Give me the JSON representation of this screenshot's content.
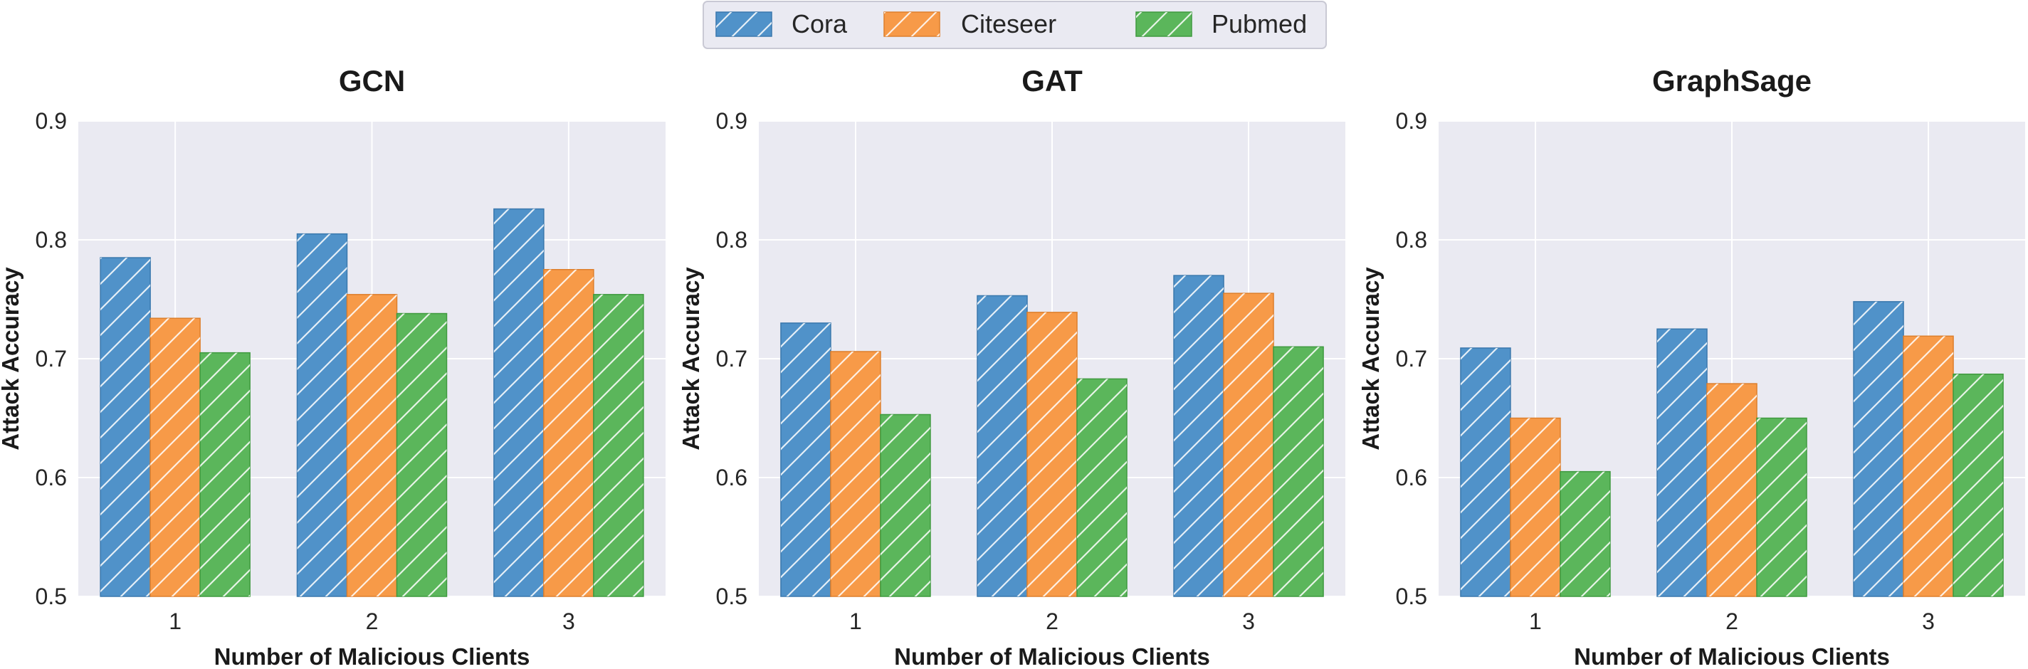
{
  "chart_data": [
    {
      "type": "bar",
      "title": "GCN",
      "xlabel": "Number of Malicious Clients",
      "ylabel": "Attack Accuracy",
      "categories": [
        "1",
        "2",
        "3"
      ],
      "ylim": [
        0.5,
        0.9
      ],
      "yticks": [
        "0.5",
        "0.6",
        "0.7",
        "0.8",
        "0.9"
      ],
      "series": [
        {
          "name": "Cora",
          "values": [
            0.785,
            0.805,
            0.826
          ]
        },
        {
          "name": "Citeseer",
          "values": [
            0.734,
            0.754,
            0.775
          ]
        },
        {
          "name": "Pubmed",
          "values": [
            0.705,
            0.738,
            0.754
          ]
        }
      ]
    },
    {
      "type": "bar",
      "title": "GAT",
      "xlabel": "Number of Malicious Clients",
      "ylabel": "Attack Accuracy",
      "categories": [
        "1",
        "2",
        "3"
      ],
      "ylim": [
        0.5,
        0.9
      ],
      "yticks": [
        "0.5",
        "0.6",
        "0.7",
        "0.8",
        "0.9"
      ],
      "series": [
        {
          "name": "Cora",
          "values": [
            0.73,
            0.753,
            0.77
          ]
        },
        {
          "name": "Citeseer",
          "values": [
            0.706,
            0.739,
            0.755
          ]
        },
        {
          "name": "Pubmed",
          "values": [
            0.653,
            0.683,
            0.71
          ]
        }
      ]
    },
    {
      "type": "bar",
      "title": "GraphSage",
      "xlabel": "Number of Malicious Clients",
      "ylabel": "Attack Accuracy",
      "categories": [
        "1",
        "2",
        "3"
      ],
      "ylim": [
        0.5,
        0.9
      ],
      "yticks": [
        "0.5",
        "0.6",
        "0.7",
        "0.8",
        "0.9"
      ],
      "series": [
        {
          "name": "Cora",
          "values": [
            0.709,
            0.725,
            0.748
          ]
        },
        {
          "name": "Citeseer",
          "values": [
            0.65,
            0.679,
            0.719
          ]
        },
        {
          "name": "Pubmed",
          "values": [
            0.605,
            0.65,
            0.687
          ]
        }
      ]
    }
  ],
  "legend": {
    "position": "top-center",
    "entries": [
      {
        "name": "Cora",
        "color": "#5092c9",
        "edge": "#3a78ad"
      },
      {
        "name": "Citeseer",
        "color": "#f79a48",
        "edge": "#dd7f2c"
      },
      {
        "name": "Pubmed",
        "color": "#5bb65b",
        "edge": "#3f9a3f"
      }
    ]
  },
  "style": {
    "plot_background": "#eaeaf2",
    "grid": true,
    "grid_color": "#ffffff",
    "hatch": "diagonal"
  }
}
